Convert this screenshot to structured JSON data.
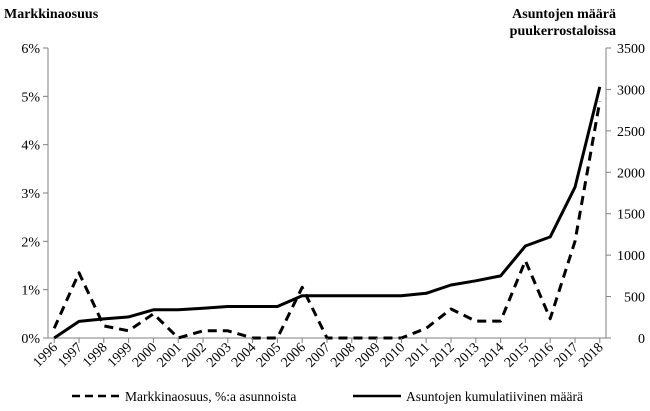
{
  "chart_data": {
    "type": "line",
    "left_axis_title": "Markkinaosuus",
    "right_axis_title_lines": [
      "Asuntojen määrä",
      "puukerrostaloissa"
    ],
    "categories": [
      "1996",
      "1997",
      "1998",
      "1999",
      "2000",
      "2001",
      "2002",
      "2003",
      "2004",
      "2005",
      "2006",
      "2007",
      "2008",
      "2009",
      "2010",
      "2011",
      "2012",
      "2013",
      "2014",
      "2015",
      "2016",
      "2017",
      "2018"
    ],
    "left_ticks": [
      "0%",
      "1%",
      "2%",
      "3%",
      "4%",
      "5%",
      "6%"
    ],
    "right_ticks": [
      "0",
      "500",
      "1000",
      "1500",
      "2000",
      "2500",
      "3000",
      "3500"
    ],
    "y_left_range": [
      0,
      6
    ],
    "y_right_range": [
      0,
      3500
    ],
    "series": [
      {
        "name": "Markkinaosuus, %:a asunnoista",
        "axis": "left",
        "style": "dashed",
        "values": [
          0.2,
          1.35,
          0.25,
          0.15,
          0.5,
          0.0,
          0.15,
          0.15,
          0.0,
          0.0,
          1.05,
          0.0,
          0.0,
          0.0,
          0.0,
          0.2,
          0.6,
          0.35,
          0.35,
          1.6,
          0.4,
          2.0,
          4.9
        ]
      },
      {
        "name": "Asuntojen kumulatiivinen määrä",
        "axis": "right",
        "style": "solid",
        "values": [
          0,
          200,
          230,
          255,
          340,
          340,
          360,
          380,
          380,
          380,
          510,
          510,
          510,
          510,
          510,
          540,
          640,
          690,
          750,
          1110,
          1220,
          1820,
          3030
        ]
      }
    ],
    "grid": false,
    "legend_position": "bottom"
  }
}
